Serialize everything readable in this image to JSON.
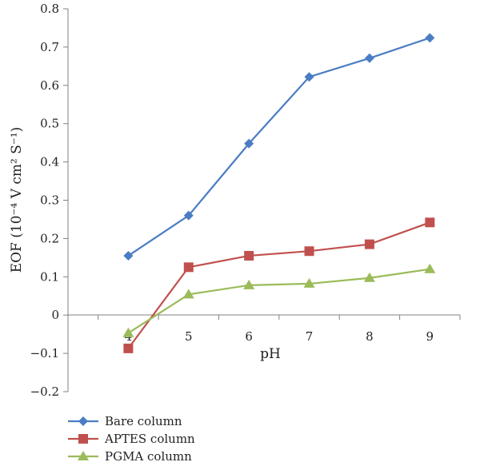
{
  "chart_data": {
    "type": "line",
    "x": [
      4,
      5,
      6,
      7,
      8,
      9
    ],
    "xlabel": "pH",
    "ylabel": "EOF (10⁻⁴ V cm² S⁻¹)",
    "ylim": [
      -0.2,
      0.8
    ],
    "xlim": [
      3,
      9.5
    ],
    "yticks": [
      -0.2,
      -0.1,
      0,
      0.1,
      0.2,
      0.3,
      0.4,
      0.5,
      0.6,
      0.7,
      0.8
    ],
    "ytick_labels": [
      "−0.2",
      "−0.1",
      "0",
      "0.1",
      "0.2",
      "0.3",
      "0.4",
      "0.5",
      "0.6",
      "0.7",
      "0.8"
    ],
    "xtick_labels": [
      "4",
      "5",
      "6",
      "7",
      "8",
      "9"
    ],
    "grid": false,
    "legend_position": "bottom-left",
    "series": [
      {
        "name": "Bare column",
        "values": [
          0.155,
          0.26,
          0.448,
          0.622,
          0.671,
          0.724
        ],
        "color": "#4a7dc4",
        "marker": "diamond"
      },
      {
        "name": "APTES column",
        "values": [
          -0.087,
          0.125,
          0.155,
          0.167,
          0.185,
          0.242
        ],
        "color": "#c0504d",
        "marker": "square"
      },
      {
        "name": "PGMA column",
        "values": [
          -0.047,
          0.054,
          0.078,
          0.082,
          0.097,
          0.12
        ],
        "color": "#9bbb59",
        "marker": "triangle"
      }
    ]
  }
}
